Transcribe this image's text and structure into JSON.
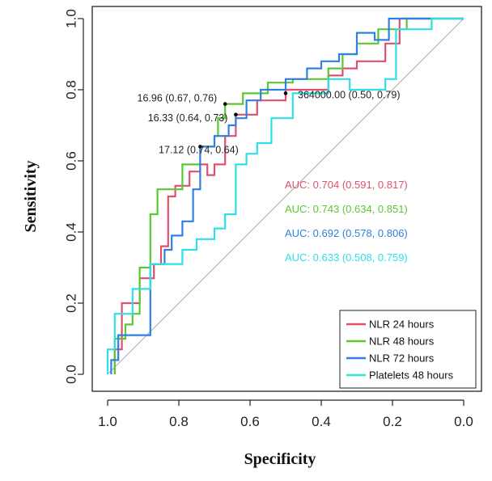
{
  "chart_data": {
    "type": "line",
    "xlabel": "Specificity",
    "ylabel": "Sensitivity",
    "xlim": [
      1.0,
      0.0
    ],
    "ylim": [
      0.0,
      1.0
    ],
    "xticks": [
      "1.0",
      "0.8",
      "0.6",
      "0.4",
      "0.2",
      "0.0"
    ],
    "yticks": [
      "0.0",
      "0.2",
      "0.4",
      "0.6",
      "0.8",
      "1.0"
    ],
    "reference_line": {
      "from": [
        1.0,
        0.0
      ],
      "to": [
        0.0,
        1.0
      ],
      "color": "#b5b5b5"
    },
    "legend_position": "bottom-right",
    "series": [
      {
        "name": "NLR 24 hours",
        "color": "#e0506e",
        "points": [
          [
            0.98,
            0.0
          ],
          [
            0.98,
            0.07
          ],
          [
            0.96,
            0.07
          ],
          [
            0.96,
            0.2
          ],
          [
            0.91,
            0.2
          ],
          [
            0.91,
            0.27
          ],
          [
            0.87,
            0.27
          ],
          [
            0.87,
            0.31
          ],
          [
            0.85,
            0.31
          ],
          [
            0.85,
            0.36
          ],
          [
            0.83,
            0.36
          ],
          [
            0.83,
            0.5
          ],
          [
            0.81,
            0.5
          ],
          [
            0.81,
            0.53
          ],
          [
            0.77,
            0.53
          ],
          [
            0.77,
            0.57
          ],
          [
            0.74,
            0.57
          ],
          [
            0.74,
            0.59
          ],
          [
            0.72,
            0.59
          ],
          [
            0.72,
            0.56
          ],
          [
            0.7,
            0.56
          ],
          [
            0.7,
            0.59
          ],
          [
            0.67,
            0.59
          ],
          [
            0.67,
            0.67
          ],
          [
            0.64,
            0.67
          ],
          [
            0.64,
            0.73
          ],
          [
            0.58,
            0.73
          ],
          [
            0.58,
            0.77
          ],
          [
            0.5,
            0.77
          ],
          [
            0.5,
            0.8
          ],
          [
            0.38,
            0.8
          ],
          [
            0.38,
            0.84
          ],
          [
            0.34,
            0.84
          ],
          [
            0.34,
            0.86
          ],
          [
            0.3,
            0.86
          ],
          [
            0.3,
            0.88
          ],
          [
            0.22,
            0.88
          ],
          [
            0.22,
            0.93
          ],
          [
            0.18,
            0.93
          ],
          [
            0.18,
            1.0
          ],
          [
            0.0,
            1.0
          ]
        ]
      },
      {
        "name": "NLR 48 hours",
        "color": "#5ac832",
        "points": [
          [
            0.98,
            0.0
          ],
          [
            0.98,
            0.1
          ],
          [
            0.95,
            0.1
          ],
          [
            0.95,
            0.14
          ],
          [
            0.93,
            0.14
          ],
          [
            0.93,
            0.17
          ],
          [
            0.91,
            0.17
          ],
          [
            0.91,
            0.3
          ],
          [
            0.88,
            0.3
          ],
          [
            0.88,
            0.45
          ],
          [
            0.86,
            0.45
          ],
          [
            0.86,
            0.52
          ],
          [
            0.79,
            0.52
          ],
          [
            0.79,
            0.59
          ],
          [
            0.74,
            0.59
          ],
          [
            0.74,
            0.64
          ],
          [
            0.7,
            0.64
          ],
          [
            0.7,
            0.67
          ],
          [
            0.69,
            0.67
          ],
          [
            0.69,
            0.72
          ],
          [
            0.67,
            0.72
          ],
          [
            0.67,
            0.76
          ],
          [
            0.62,
            0.76
          ],
          [
            0.62,
            0.79
          ],
          [
            0.55,
            0.79
          ],
          [
            0.55,
            0.82
          ],
          [
            0.48,
            0.82
          ],
          [
            0.48,
            0.83
          ],
          [
            0.38,
            0.83
          ],
          [
            0.38,
            0.86
          ],
          [
            0.34,
            0.86
          ],
          [
            0.34,
            0.9
          ],
          [
            0.3,
            0.9
          ],
          [
            0.3,
            0.93
          ],
          [
            0.24,
            0.93
          ],
          [
            0.24,
            0.97
          ],
          [
            0.16,
            0.97
          ],
          [
            0.16,
            1.0
          ],
          [
            0.0,
            1.0
          ]
        ]
      },
      {
        "name": "NLR 72 hours",
        "color": "#2f80e0",
        "points": [
          [
            0.99,
            0.0
          ],
          [
            0.99,
            0.04
          ],
          [
            0.97,
            0.04
          ],
          [
            0.97,
            0.11
          ],
          [
            0.88,
            0.11
          ],
          [
            0.88,
            0.31
          ],
          [
            0.84,
            0.31
          ],
          [
            0.84,
            0.35
          ],
          [
            0.82,
            0.35
          ],
          [
            0.82,
            0.39
          ],
          [
            0.79,
            0.39
          ],
          [
            0.79,
            0.43
          ],
          [
            0.76,
            0.43
          ],
          [
            0.76,
            0.52
          ],
          [
            0.74,
            0.52
          ],
          [
            0.74,
            0.64
          ],
          [
            0.7,
            0.64
          ],
          [
            0.7,
            0.67
          ],
          [
            0.66,
            0.67
          ],
          [
            0.66,
            0.7
          ],
          [
            0.64,
            0.7
          ],
          [
            0.64,
            0.72
          ],
          [
            0.61,
            0.72
          ],
          [
            0.61,
            0.77
          ],
          [
            0.57,
            0.77
          ],
          [
            0.57,
            0.8
          ],
          [
            0.5,
            0.8
          ],
          [
            0.5,
            0.83
          ],
          [
            0.44,
            0.83
          ],
          [
            0.44,
            0.86
          ],
          [
            0.4,
            0.86
          ],
          [
            0.4,
            0.88
          ],
          [
            0.35,
            0.88
          ],
          [
            0.35,
            0.9
          ],
          [
            0.3,
            0.9
          ],
          [
            0.3,
            0.96
          ],
          [
            0.25,
            0.96
          ],
          [
            0.25,
            0.94
          ],
          [
            0.21,
            0.94
          ],
          [
            0.21,
            1.0
          ],
          [
            0.0,
            1.0
          ]
        ]
      },
      {
        "name": "Platelets 48 hours",
        "color": "#2ee0e6",
        "points": [
          [
            1.0,
            0.0
          ],
          [
            1.0,
            0.07
          ],
          [
            0.98,
            0.07
          ],
          [
            0.98,
            0.17
          ],
          [
            0.93,
            0.17
          ],
          [
            0.93,
            0.24
          ],
          [
            0.88,
            0.24
          ],
          [
            0.88,
            0.31
          ],
          [
            0.79,
            0.31
          ],
          [
            0.79,
            0.35
          ],
          [
            0.75,
            0.35
          ],
          [
            0.75,
            0.38
          ],
          [
            0.7,
            0.38
          ],
          [
            0.7,
            0.41
          ],
          [
            0.67,
            0.41
          ],
          [
            0.67,
            0.45
          ],
          [
            0.64,
            0.45
          ],
          [
            0.64,
            0.59
          ],
          [
            0.61,
            0.59
          ],
          [
            0.61,
            0.62
          ],
          [
            0.58,
            0.62
          ],
          [
            0.58,
            0.65
          ],
          [
            0.54,
            0.65
          ],
          [
            0.54,
            0.72
          ],
          [
            0.48,
            0.72
          ],
          [
            0.48,
            0.79
          ],
          [
            0.38,
            0.79
          ],
          [
            0.38,
            0.83
          ],
          [
            0.32,
            0.83
          ],
          [
            0.32,
            0.8
          ],
          [
            0.22,
            0.8
          ],
          [
            0.22,
            0.83
          ],
          [
            0.19,
            0.83
          ],
          [
            0.19,
            0.97
          ],
          [
            0.09,
            0.97
          ],
          [
            0.09,
            1.0
          ],
          [
            0.0,
            1.0
          ]
        ]
      }
    ],
    "cutoff_points": [
      {
        "label": "16.96 (0.67, 0.76)",
        "x": 0.67,
        "y": 0.76
      },
      {
        "label": "16.33 (0.64, 0.73)",
        "x": 0.64,
        "y": 0.73
      },
      {
        "label": "17.12 (0.74, 0.64)",
        "x": 0.74,
        "y": 0.64
      },
      {
        "label": "364000.00 (0.50, 0.79)",
        "x": 0.5,
        "y": 0.79
      }
    ],
    "auc_annotations": [
      {
        "text": "AUC: 0.704 (0.591, 0.817)",
        "color": "#e0506e"
      },
      {
        "text": "AUC: 0.743 (0.634, 0.851)",
        "color": "#5ac832"
      },
      {
        "text": "AUC: 0.692 (0.578, 0.806)",
        "color": "#2f80e0"
      },
      {
        "text": "AUC: 0.633 (0.508, 0.759)",
        "color": "#2ee0e6"
      }
    ]
  }
}
